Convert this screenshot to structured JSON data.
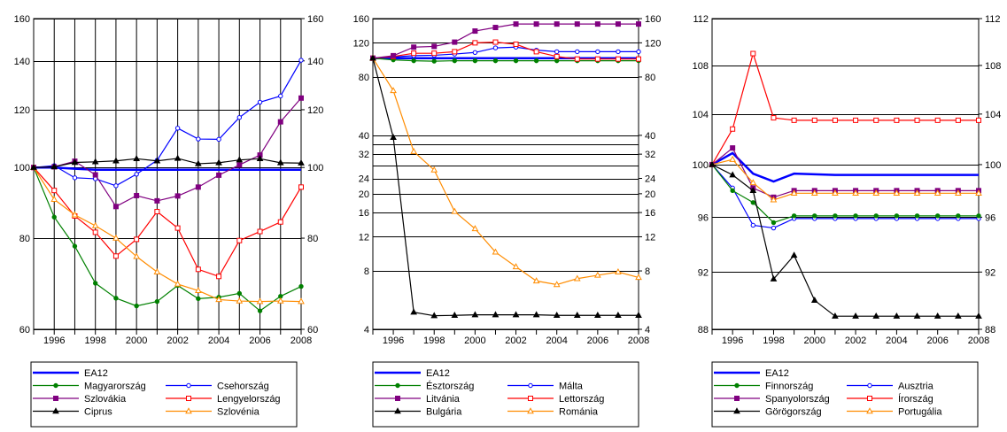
{
  "chart_data": [
    {
      "type": "line",
      "y_scale": "log",
      "ylim": [
        60,
        160
      ],
      "yticks": [
        60,
        80,
        100,
        120,
        140,
        160
      ],
      "xlim": [
        1995,
        2008
      ],
      "xticks": [
        "1996",
        "1998",
        "2000",
        "2002",
        "2004",
        "2006",
        "2008"
      ],
      "grid": "horizontal at labelled ticks; vertical at every year",
      "legend_position": "bottom",
      "x": [
        1995,
        1996,
        1997,
        1998,
        1999,
        2000,
        2001,
        2002,
        2003,
        2004,
        2005,
        2006,
        2007,
        2008
      ],
      "series": [
        {
          "name": "EA12",
          "color": "#0000ff",
          "marker": "none",
          "bold": true,
          "values": [
            100,
            100,
            99.6,
            99.3,
            99.3,
            99.3,
            99.3,
            99.3,
            99.3,
            99.3,
            99.3,
            99.3,
            99.3,
            99.3
          ]
        },
        {
          "name": "Csehország",
          "color": "#0000ff",
          "marker": "circle",
          "values": [
            100,
            100.6,
            96.8,
            96.5,
            94.4,
            97.9,
            102.3,
            113.2,
            109.4,
            109.3,
            117.1,
            122.9,
            125.3,
            140.3
          ]
        },
        {
          "name": "Magyarország",
          "color": "#008000",
          "marker": "dot",
          "values": [
            100,
            85.5,
            78,
            69.4,
            66.2,
            64.6,
            65.5,
            68.9,
            66.1,
            66.4,
            67.2,
            63.6,
            66.6,
            68.7
          ]
        },
        {
          "name": "Lengyelország",
          "color": "#ff0000",
          "marker": "square",
          "values": [
            100,
            93,
            85.8,
            81.5,
            75.6,
            79.7,
            87,
            82.6,
            72.5,
            70.9,
            79.4,
            81.7,
            84.2,
            94
          ]
        },
        {
          "name": "Szlovákia",
          "color": "#800080",
          "marker": "filled-square",
          "values": [
            100,
            100.2,
            102,
            97.7,
            88.4,
            91.5,
            90,
            91.4,
            94,
            97.6,
            100.8,
            104,
            115.5,
            124.5
          ]
        },
        {
          "name": "Szlovénia",
          "color": "#ff8c00",
          "marker": "triangle",
          "values": [
            100,
            90.4,
            86.1,
            83.2,
            80,
            75.5,
            71.9,
            69.2,
            67.8,
            65.9,
            65.6,
            65.5,
            65.6,
            65.5
          ]
        },
        {
          "name": "Ciprus",
          "color": "#000000",
          "marker": "filled-triangle",
          "values": [
            100,
            100.2,
            101.6,
            101.8,
            102.1,
            102.8,
            102.1,
            102.9,
            101.2,
            101.5,
            102.4,
            102.8,
            101.5,
            101.4
          ]
        }
      ]
    },
    {
      "type": "line",
      "y_scale": "log",
      "ylim": [
        4,
        160
      ],
      "yticks": [
        4,
        8,
        12,
        16,
        20,
        24,
        32,
        40,
        80,
        120,
        160
      ],
      "yticks_gridonly": [
        28,
        36
      ],
      "xlim": [
        1995,
        2008
      ],
      "xticks": [
        "1996",
        "1998",
        "2000",
        "2002",
        "2004",
        "2006",
        "2008"
      ],
      "grid": "horizontal at ticks",
      "legend_position": "bottom",
      "x": [
        1995,
        1996,
        1997,
        1998,
        1999,
        2000,
        2001,
        2002,
        2003,
        2004,
        2005,
        2006,
        2007,
        2008
      ],
      "series": [
        {
          "name": "EA12",
          "color": "#0000ff",
          "marker": "none",
          "bold": true,
          "values": [
            100,
            100,
            100,
            100,
            100,
            100,
            100,
            100,
            100,
            100,
            100,
            100,
            100,
            100
          ]
        },
        {
          "name": "Málta",
          "color": "#0000ff",
          "marker": "circle",
          "values": [
            100,
            101.5,
            103,
            103.5,
            105,
            107,
            113,
            114,
            110,
            108,
            108,
            108,
            108,
            108
          ]
        },
        {
          "name": "Észtország",
          "color": "#008000",
          "marker": "dot",
          "values": [
            100,
            98,
            97,
            96.5,
            97,
            97,
            97,
            97,
            97,
            97,
            97,
            97,
            97,
            97
          ]
        },
        {
          "name": "Lettország",
          "color": "#ff0000",
          "marker": "square",
          "values": [
            100,
            102,
            106,
            106,
            108,
            120,
            121,
            118,
            108,
            102,
            99,
            99,
            99,
            99
          ]
        },
        {
          "name": "Litvánia",
          "color": "#800080",
          "marker": "filled-square",
          "values": [
            100,
            103,
            114,
            115,
            121,
            138,
            144,
            150,
            150,
            150,
            150,
            150,
            150,
            150
          ]
        },
        {
          "name": "Románia",
          "color": "#ff8c00",
          "marker": "triangle",
          "values": [
            100,
            68,
            33,
            26.5,
            16.2,
            13.2,
            10,
            8.4,
            7.1,
            6.8,
            7.3,
            7.6,
            7.9,
            7.4
          ]
        },
        {
          "name": "Bulgária",
          "color": "#000000",
          "marker": "filled-triangle",
          "values": [
            100,
            39,
            4.9,
            4.7,
            4.72,
            4.75,
            4.75,
            4.75,
            4.75,
            4.72,
            4.72,
            4.72,
            4.72,
            4.72
          ]
        }
      ]
    },
    {
      "type": "line",
      "y_scale": "log",
      "ylim": [
        88,
        112
      ],
      "yticks": [
        88,
        92,
        96,
        100,
        104,
        108,
        112
      ],
      "xlim": [
        1995,
        2008
      ],
      "xticks": [
        "1996",
        "1998",
        "2000",
        "2002",
        "2004",
        "2006",
        "2008"
      ],
      "grid": "horizontal at ticks",
      "legend_position": "bottom",
      "x": [
        1995,
        1996,
        1997,
        1998,
        1999,
        2000,
        2001,
        2002,
        2003,
        2004,
        2005,
        2006,
        2007,
        2008
      ],
      "series": [
        {
          "name": "EA12",
          "color": "#0000ff",
          "marker": "none",
          "bold": true,
          "values": [
            100,
            100.9,
            99.3,
            98.7,
            99.3,
            99.25,
            99.2,
            99.2,
            99.2,
            99.2,
            99.2,
            99.2,
            99.2,
            99.2
          ]
        },
        {
          "name": "Ausztria",
          "color": "#0000ff",
          "marker": "circle",
          "values": [
            100,
            98.2,
            95.4,
            95.2,
            95.9,
            95.9,
            95.9,
            95.9,
            95.9,
            95.9,
            95.9,
            95.9,
            95.9,
            95.9
          ]
        },
        {
          "name": "Finnország",
          "color": "#008000",
          "marker": "dot",
          "values": [
            100,
            98,
            97.1,
            95.6,
            96.1,
            96.1,
            96.1,
            96.1,
            96.1,
            96.1,
            96.1,
            96.1,
            96.1,
            96.1
          ]
        },
        {
          "name": "Írország",
          "color": "#ff0000",
          "marker": "square",
          "values": [
            100,
            102.8,
            109,
            103.7,
            103.5,
            103.5,
            103.5,
            103.5,
            103.5,
            103.5,
            103.5,
            103.5,
            103.5,
            103.5
          ]
        },
        {
          "name": "Spanyolország",
          "color": "#800080",
          "marker": "filled-square",
          "values": [
            100,
            101.3,
            98.2,
            97.5,
            98,
            98,
            98,
            98,
            98,
            98,
            98,
            98,
            98,
            98
          ]
        },
        {
          "name": "Portugália",
          "color": "#ff8c00",
          "marker": "triangle",
          "values": [
            100,
            100.4,
            98.6,
            97.3,
            97.8,
            97.8,
            97.8,
            97.8,
            97.8,
            97.8,
            97.8,
            97.8,
            97.8,
            97.8
          ]
        },
        {
          "name": "Görögország",
          "color": "#000000",
          "marker": "filled-triangle",
          "values": [
            100,
            99.2,
            98,
            91.5,
            93.2,
            90,
            88.9,
            88.9,
            88.9,
            88.9,
            88.9,
            88.9,
            88.9,
            88.9
          ]
        }
      ]
    }
  ]
}
